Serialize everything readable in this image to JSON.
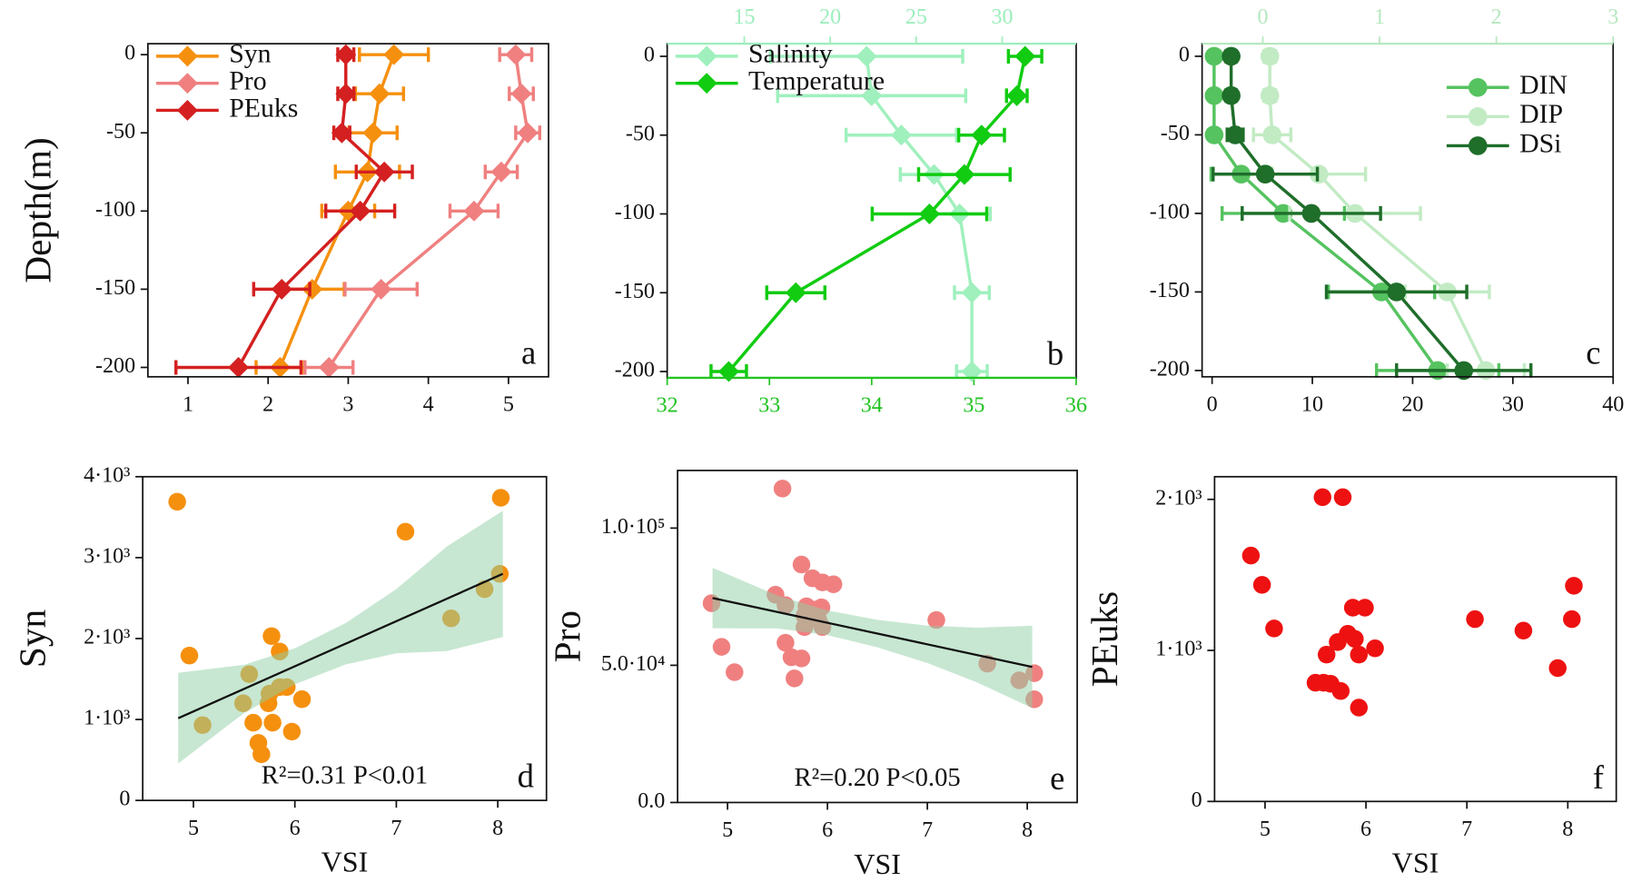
{
  "chart_data": [
    {
      "type": "profile",
      "label": "a",
      "ylabel": "Depth(m)",
      "marker": "diamond",
      "legend": "upper left",
      "y": [
        0,
        -25,
        -50,
        -75,
        -100,
        -150,
        -200
      ],
      "ylim": [
        -206,
        7
      ],
      "yticks": [
        0,
        -50,
        -100,
        -150,
        -200
      ],
      "xlim": [
        0.5,
        5.5
      ],
      "xticks": [
        1,
        2,
        3,
        4,
        5
      ],
      "series": [
        {
          "name": "Syn",
          "color": "#f5900f",
          "values": [
            3.57,
            3.39,
            3.31,
            3.24,
            3,
            2.55,
            2.15
          ],
          "errors": [
            0.43,
            0.3,
            0.3,
            0.4,
            0.33,
            0.4,
            0.3
          ]
        },
        {
          "name": "Pro",
          "color": "#f08080",
          "values": [
            5.09,
            5.16,
            5.24,
            4.91,
            4.57,
            3.41,
            2.76
          ],
          "errors": [
            0.2,
            0.15,
            0.15,
            0.2,
            0.3,
            0.45,
            0.3
          ]
        },
        {
          "name": "PEuks",
          "color": "#d42020",
          "values": [
            2.97,
            2.97,
            2.92,
            3.45,
            3.15,
            2.17,
            1.63
          ],
          "errors": [
            0.1,
            0.1,
            0.1,
            0.35,
            0.43,
            0.35,
            0.78
          ]
        }
      ]
    },
    {
      "type": "profile",
      "label": "b",
      "marker": "diamond",
      "legend": "upper left",
      "y": [
        0,
        -25,
        -50,
        -75,
        -100,
        -150,
        -200
      ],
      "ylim": [
        -204,
        8
      ],
      "yticks": [
        0,
        -50,
        -100,
        -150,
        -200
      ],
      "xlim": [
        32,
        36
      ],
      "xticks": [
        32,
        33,
        34,
        35,
        36
      ],
      "xaxis_color": "#22c422",
      "x2lim": [
        10.52,
        34.3
      ],
      "x2ticks": [
        15,
        20,
        25,
        30
      ],
      "x2axis_color": "#9ceebc",
      "series": [
        {
          "name": "Salinity",
          "color": "#9ff0bd",
          "values": [
            33.95,
            34.0,
            34.29,
            34.61,
            34.86,
            34.98,
            34.98
          ],
          "errors": [
            0.94,
            0.92,
            0.54,
            0.33,
            0.3,
            0.17,
            0.15
          ]
        },
        {
          "name": "Temperature",
          "color": "#11cc11",
          "axis": "x2",
          "values": [
            31.33,
            30.85,
            28.8,
            27.8,
            25.77,
            18,
            14.1
          ],
          "errors": [
            0.97,
            0.6,
            1.33,
            2.66,
            3.33,
            1.69,
            1.03
          ]
        }
      ]
    },
    {
      "type": "profile",
      "label": "c",
      "marker": "circle",
      "legend": "upper right",
      "y": [
        0,
        -25,
        -50,
        -75,
        -100,
        -150,
        -200
      ],
      "ylim": [
        -204,
        8
      ],
      "yticks": [
        0,
        -50,
        -100,
        -150,
        -200
      ],
      "xlim": [
        -1,
        40
      ],
      "xticks": [
        0,
        10,
        20,
        30,
        40
      ],
      "x2lim": [
        -0.52,
        3
      ],
      "x2ticks": [
        0,
        1,
        2,
        3
      ],
      "x2axis_color": "#b6e8c0",
      "series": [
        {
          "name": "DIN",
          "color": "#55c35f",
          "values": [
            0.2,
            0.2,
            0.2,
            2.9,
            7.1,
            16.9,
            22.5
          ],
          "errors": [
            0.3,
            0.3,
            0.3,
            3,
            6.1,
            5.3,
            6.1
          ]
        },
        {
          "name": "DIP",
          "color": "#c2ebc4",
          "axis": "x2",
          "values": [
            0.06,
            0.06,
            0.08,
            0.48,
            0.79,
            1.58,
            1.91
          ],
          "errors": [
            0.05,
            0.05,
            0.16,
            0.4,
            0.56,
            0.36,
            0.33
          ]
        },
        {
          "name": "DSi",
          "color": "#1f6e2a",
          "values": [
            1.9,
            1.9,
            2.3,
            5.3,
            9.9,
            18.4,
            25.1
          ],
          "errors": [
            0.5,
            0.5,
            0.8,
            5.2,
            6.9,
            7,
            6.7
          ]
        }
      ]
    },
    {
      "type": "scatter",
      "label": "d",
      "ylabel": "Syn",
      "xlabel": "VSI",
      "annotation": "R²=0.31 P<0.01",
      "color": "#f5900f",
      "xlim": [
        4.5,
        8.48
      ],
      "xticks": [
        5,
        6,
        7,
        8
      ],
      "ylim": [
        0,
        4000
      ],
      "yticks": [
        0,
        {
          "value": 1000,
          "label": "1·10³"
        },
        {
          "value": 2000,
          "label": "2·10³"
        },
        {
          "value": 3000,
          "label": "3·10³"
        },
        {
          "value": 4000,
          "label": "4·10³"
        }
      ],
      "x": [
        4.84,
        8.03,
        7.09,
        8.02,
        7.87,
        7.54,
        4.96,
        5.77,
        5.85,
        5.55,
        5.85,
        5.92,
        5.75,
        5.49,
        5.74,
        6.07,
        5.09,
        5.59,
        5.78,
        5.97,
        5.64,
        5.67
      ],
      "values": [
        3690,
        3740,
        3320,
        2800,
        2610,
        2250,
        1790,
        2030,
        1840,
        1560,
        1400,
        1400,
        1320,
        1200,
        1200,
        1250,
        930,
        960,
        960,
        850,
        710,
        570
      ],
      "fit": {
        "color": "#111111",
        "x": [
          4.85,
          8.05
        ],
        "y": [
          1016,
          2800
        ]
      },
      "ci": {
        "color": "#8fcfa5",
        "x": [
          4.85,
          5.5,
          6.0,
          6.5,
          7.0,
          7.5,
          8.05
        ],
        "upper": [
          1576,
          1676,
          1879,
          2190,
          2611,
          3139,
          3580
        ],
        "lower": [
          456,
          1080,
          1435,
          1680,
          1817,
          1845,
          2020
        ]
      }
    },
    {
      "type": "scatter",
      "label": "e",
      "ylabel": "Pro",
      "xlabel": "VSI",
      "annotation": "R²=0.20 P<0.05",
      "color": "#f08080",
      "xlim": [
        4.5,
        8.5
      ],
      "xticks": [
        5,
        6,
        7,
        8
      ],
      "ylim": [
        0,
        121000
      ],
      "yticks": [
        {
          "value": 0,
          "label": "0.0"
        },
        {
          "value": 50000,
          "label": "5.0·10⁴"
        },
        {
          "value": 100000,
          "label": "1.0·10⁵"
        }
      ],
      "x": [
        5.55,
        5.74,
        5.85,
        5.95,
        6.06,
        5.48,
        4.84,
        5.58,
        5.79,
        5.875,
        5.94,
        5.77,
        5.91,
        5.77,
        5.95,
        7.09,
        4.94,
        5.58,
        5.64,
        5.74,
        5.07,
        5.67,
        7.6,
        7.92,
        8.07,
        8.07
      ],
      "values": [
        114400,
        86700,
        81700,
        80200,
        79500,
        75700,
        72600,
        71900,
        71500,
        70300,
        71100,
        68100,
        66500,
        63900,
        63900,
        66500,
        56700,
        58200,
        52900,
        52500,
        47500,
        45200,
        50600,
        44500,
        47100,
        37600
      ],
      "fit": {
        "color": "#111111",
        "x": [
          4.85,
          8.05
        ],
        "y": [
          74500,
          49400
        ]
      },
      "ci": {
        "color": "#8fcfa5",
        "x": [
          4.85,
          5.5,
          6.0,
          6.5,
          7.0,
          7.5,
          8.05
        ],
        "upper": [
          85500,
          75400,
          69980,
          66560,
          64440,
          63720,
          64400
        ],
        "lower": [
          63500,
          63400,
          60980,
          56560,
          50840,
          43720,
          34400
        ]
      }
    },
    {
      "type": "scatter",
      "label": "f",
      "ylabel": "PEuks",
      "xlabel": "VSI",
      "color": "#ee1111",
      "xlim": [
        4.5,
        8.48
      ],
      "xticks": [
        5,
        6,
        7,
        8
      ],
      "ylim": [
        0,
        2150
      ],
      "yticks": [
        0,
        {
          "value": 1000,
          "label": "1·10³"
        },
        {
          "value": 2000,
          "label": "2·10³"
        }
      ],
      "x": [
        5.57,
        5.77,
        4.86,
        4.97,
        8.06,
        5.09,
        5.87,
        5.99,
        7.08,
        7.56,
        8.04,
        5.82,
        5.72,
        5.89,
        6.09,
        5.61,
        5.93,
        7.9,
        5.5,
        5.58,
        5.65,
        5.75,
        5.93
      ],
      "values": [
        2014,
        2014,
        1628,
        1434,
        1428,
        1145,
        1283,
        1283,
        1207,
        1131,
        1207,
        1110,
        1055,
        1076,
        1014,
        972,
        972,
        883,
        786,
        786,
        779,
        731,
        621
      ]
    }
  ]
}
